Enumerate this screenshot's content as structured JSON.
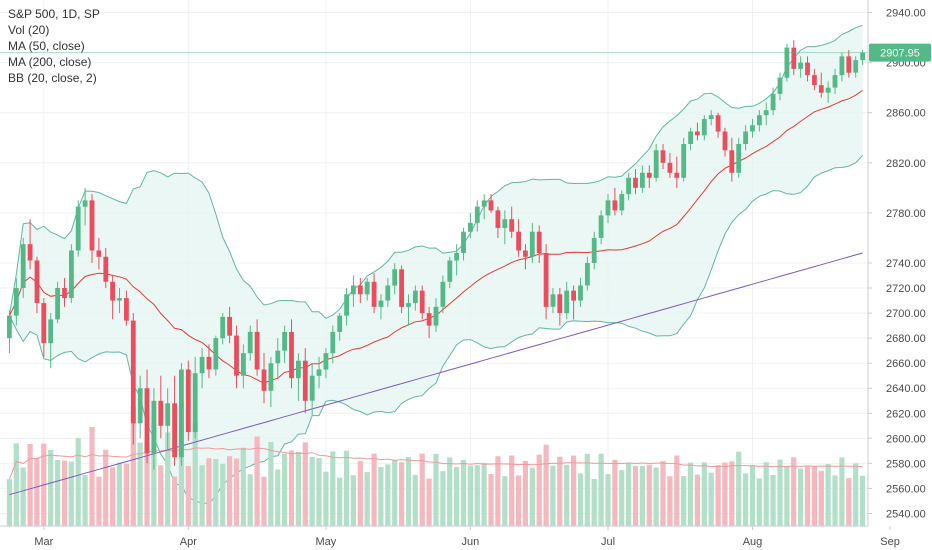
{
  "chart_data": {
    "type": "candlestick",
    "symbol_label": "S&P 500, 1D, SP",
    "indicator_labels": [
      "Vol (20)",
      "MA (50, close)",
      "MA (200, close)",
      "BB (20, close, 2)"
    ],
    "price_axis": {
      "ticks": [
        2540,
        2560,
        2580,
        2600,
        2620,
        2640,
        2660,
        2680,
        2700,
        2720,
        2740,
        2780,
        2820,
        2860,
        2900,
        2940
      ],
      "range": [
        2530,
        2950
      ]
    },
    "time_axis": {
      "labels": [
        "Mar",
        "Apr",
        "May",
        "Jun",
        "Jul",
        "Aug",
        "Sep"
      ],
      "label_bar_index": [
        5,
        26,
        46,
        67,
        87,
        108,
        128
      ]
    },
    "last_price": 2907.95,
    "candles": [
      [
        2680,
        2702,
        2668,
        2698
      ],
      [
        2698,
        2728,
        2690,
        2720
      ],
      [
        2720,
        2760,
        2712,
        2755
      ],
      [
        2755,
        2775,
        2735,
        2742
      ],
      [
        2742,
        2745,
        2700,
        2708
      ],
      [
        2708,
        2712,
        2665,
        2676
      ],
      [
        2676,
        2700,
        2656,
        2695
      ],
      [
        2695,
        2725,
        2692,
        2720
      ],
      [
        2720,
        2728,
        2705,
        2712
      ],
      [
        2712,
        2755,
        2708,
        2750
      ],
      [
        2750,
        2790,
        2745,
        2785
      ],
      [
        2785,
        2800,
        2770,
        2790
      ],
      [
        2790,
        2795,
        2740,
        2750
      ],
      [
        2750,
        2760,
        2735,
        2745
      ],
      [
        2745,
        2752,
        2720,
        2725
      ],
      [
        2725,
        2730,
        2695,
        2710
      ],
      [
        2710,
        2720,
        2700,
        2712
      ],
      [
        2712,
        2718,
        2690,
        2694
      ],
      [
        2694,
        2700,
        2595,
        2612
      ],
      [
        2612,
        2650,
        2600,
        2640
      ],
      [
        2640,
        2655,
        2580,
        2588
      ],
      [
        2588,
        2640,
        2575,
        2630
      ],
      [
        2630,
        2650,
        2600,
        2610
      ],
      [
        2610,
        2640,
        2590,
        2628
      ],
      [
        2628,
        2650,
        2578,
        2585
      ],
      [
        2585,
        2660,
        2578,
        2655
      ],
      [
        2655,
        2662,
        2598,
        2605
      ],
      [
        2605,
        2665,
        2600,
        2652
      ],
      [
        2652,
        2672,
        2640,
        2665
      ],
      [
        2665,
        2675,
        2648,
        2655
      ],
      [
        2655,
        2682,
        2650,
        2680
      ],
      [
        2680,
        2700,
        2675,
        2697
      ],
      [
        2697,
        2705,
        2676,
        2682
      ],
      [
        2682,
        2690,
        2640,
        2650
      ],
      [
        2650,
        2675,
        2640,
        2668
      ],
      [
        2668,
        2690,
        2662,
        2685
      ],
      [
        2685,
        2695,
        2650,
        2655
      ],
      [
        2655,
        2668,
        2628,
        2638
      ],
      [
        2638,
        2665,
        2625,
        2660
      ],
      [
        2660,
        2680,
        2648,
        2670
      ],
      [
        2670,
        2690,
        2660,
        2685
      ],
      [
        2685,
        2695,
        2640,
        2648
      ],
      [
        2648,
        2668,
        2630,
        2662
      ],
      [
        2662,
        2672,
        2620,
        2630
      ],
      [
        2630,
        2660,
        2618,
        2650
      ],
      [
        2650,
        2665,
        2640,
        2655
      ],
      [
        2655,
        2672,
        2648,
        2668
      ],
      [
        2668,
        2690,
        2660,
        2685
      ],
      [
        2685,
        2700,
        2678,
        2698
      ],
      [
        2698,
        2720,
        2690,
        2715
      ],
      [
        2715,
        2730,
        2705,
        2722
      ],
      [
        2722,
        2728,
        2708,
        2715
      ],
      [
        2715,
        2728,
        2710,
        2725
      ],
      [
        2725,
        2732,
        2700,
        2705
      ],
      [
        2705,
        2715,
        2695,
        2710
      ],
      [
        2710,
        2728,
        2705,
        2722
      ],
      [
        2722,
        2740,
        2715,
        2735
      ],
      [
        2735,
        2738,
        2700,
        2705
      ],
      [
        2705,
        2715,
        2690,
        2708
      ],
      [
        2708,
        2722,
        2702,
        2718
      ],
      [
        2718,
        2722,
        2695,
        2700
      ],
      [
        2700,
        2705,
        2680,
        2690
      ],
      [
        2690,
        2712,
        2685,
        2705
      ],
      [
        2705,
        2730,
        2700,
        2725
      ],
      [
        2725,
        2745,
        2720,
        2742
      ],
      [
        2742,
        2755,
        2730,
        2748
      ],
      [
        2748,
        2768,
        2742,
        2765
      ],
      [
        2765,
        2780,
        2760,
        2772
      ],
      [
        2772,
        2790,
        2765,
        2785
      ],
      [
        2785,
        2795,
        2775,
        2790
      ],
      [
        2790,
        2795,
        2780,
        2782
      ],
      [
        2782,
        2785,
        2760,
        2768
      ],
      [
        2768,
        2782,
        2755,
        2775
      ],
      [
        2775,
        2785,
        2760,
        2765
      ],
      [
        2765,
        2775,
        2745,
        2750
      ],
      [
        2750,
        2755,
        2735,
        2745
      ],
      [
        2745,
        2772,
        2740,
        2765
      ],
      [
        2765,
        2770,
        2740,
        2748
      ],
      [
        2748,
        2755,
        2695,
        2705
      ],
      [
        2705,
        2720,
        2700,
        2715
      ],
      [
        2715,
        2720,
        2690,
        2700
      ],
      [
        2700,
        2725,
        2695,
        2718
      ],
      [
        2718,
        2722,
        2695,
        2710
      ],
      [
        2710,
        2728,
        2705,
        2722
      ],
      [
        2722,
        2745,
        2718,
        2740
      ],
      [
        2740,
        2765,
        2735,
        2760
      ],
      [
        2760,
        2782,
        2755,
        2778
      ],
      [
        2778,
        2795,
        2772,
        2790
      ],
      [
        2790,
        2800,
        2778,
        2782
      ],
      [
        2782,
        2798,
        2778,
        2795
      ],
      [
        2795,
        2812,
        2790,
        2808
      ],
      [
        2808,
        2815,
        2795,
        2800
      ],
      [
        2800,
        2818,
        2796,
        2812
      ],
      [
        2812,
        2818,
        2800,
        2808
      ],
      [
        2808,
        2835,
        2805,
        2830
      ],
      [
        2830,
        2835,
        2815,
        2820
      ],
      [
        2820,
        2828,
        2808,
        2812
      ],
      [
        2812,
        2825,
        2800,
        2808
      ],
      [
        2808,
        2840,
        2805,
        2835
      ],
      [
        2835,
        2848,
        2830,
        2845
      ],
      [
        2845,
        2852,
        2838,
        2842
      ],
      [
        2842,
        2858,
        2838,
        2855
      ],
      [
        2855,
        2862,
        2850,
        2858
      ],
      [
        2858,
        2860,
        2840,
        2845
      ],
      [
        2845,
        2848,
        2825,
        2830
      ],
      [
        2830,
        2840,
        2805,
        2812
      ],
      [
        2812,
        2840,
        2808,
        2835
      ],
      [
        2835,
        2850,
        2830,
        2845
      ],
      [
        2845,
        2855,
        2840,
        2850
      ],
      [
        2850,
        2862,
        2845,
        2858
      ],
      [
        2858,
        2868,
        2850,
        2862
      ],
      [
        2862,
        2880,
        2858,
        2875
      ],
      [
        2875,
        2892,
        2870,
        2888
      ],
      [
        2888,
        2915,
        2885,
        2912
      ],
      [
        2912,
        2918,
        2890,
        2895
      ],
      [
        2895,
        2905,
        2888,
        2900
      ],
      [
        2900,
        2905,
        2885,
        2890
      ],
      [
        2890,
        2895,
        2878,
        2882
      ],
      [
        2882,
        2892,
        2872,
        2876
      ],
      [
        2876,
        2885,
        2868,
        2880
      ],
      [
        2880,
        2895,
        2875,
        2890
      ],
      [
        2890,
        2908,
        2885,
        2905
      ],
      [
        2905,
        2910,
        2888,
        2892
      ],
      [
        2892,
        2905,
        2888,
        2902
      ],
      [
        2902,
        2910,
        2898,
        2908
      ]
    ],
    "volume_up_down": "green=close>open, red=close<open",
    "colors": {
      "up": "#53b987",
      "down": "#eb4d5c",
      "up_vol": "#b2dfc8",
      "down_vol": "#f5b8be",
      "ma50": "#e53935",
      "ma200": "#7e57c2",
      "bb_line": "#5fb7a3",
      "bb_fill": "#e3f3ef",
      "vol_ma": "#ef9a9a",
      "grid": "#eef0f3",
      "axis_text": "#4a4a4a"
    }
  }
}
